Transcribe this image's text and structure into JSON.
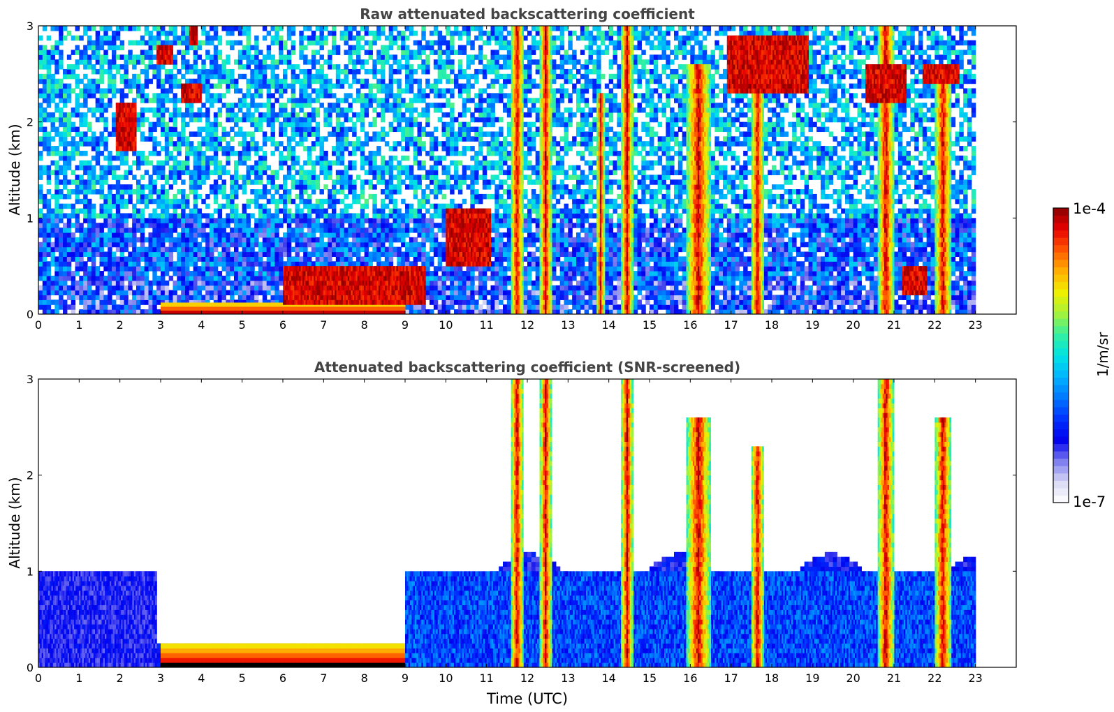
{
  "figure": {
    "xlabel": "Time (UTC)",
    "colorbar": {
      "label": "1/m/sr",
      "max_label": "1e-4",
      "min_label": "1e-7",
      "scale": "log",
      "vmin": 1e-07,
      "vmax": 0.0001,
      "colormap": [
        "#ffffff",
        "#d8d8f4",
        "#7a7af0",
        "#0000ee",
        "#0033ff",
        "#0077ff",
        "#00b4ff",
        "#00e4e4",
        "#33f0a0",
        "#a6f23a",
        "#f0f000",
        "#ffb000",
        "#ff5a00",
        "#e80000",
        "#8b0000"
      ]
    }
  },
  "chart_data": [
    {
      "type": "heatmap",
      "title": "Raw attenuated backscattering coefficient",
      "xlabel": "",
      "ylabel": "Altitude (km)",
      "xlim": [
        0,
        24
      ],
      "ylim": [
        0,
        3
      ],
      "x_ticks": [
        "0",
        "1",
        "2",
        "3",
        "4",
        "5",
        "6",
        "7",
        "8",
        "9",
        "10",
        "11",
        "12",
        "13",
        "14",
        "15",
        "16",
        "17",
        "18",
        "19",
        "20",
        "21",
        "22",
        "23"
      ],
      "y_ticks": [
        "0",
        "1",
        "2",
        "3"
      ],
      "data_extent_x": [
        0,
        23
      ],
      "features": [
        {
          "kind": "surface_aerosol_layer",
          "x": [
            3.0,
            9.0
          ],
          "altitude_km": [
            0.0,
            0.12
          ]
        },
        {
          "kind": "boundary_layer_top",
          "x": [
            6.0,
            9.5
          ],
          "altitude_km": [
            0.1,
            0.5
          ]
        },
        {
          "kind": "cloud",
          "x": [
            2.9,
            3.3
          ],
          "altitude_km": [
            2.6,
            2.8
          ]
        },
        {
          "kind": "cloud",
          "x": [
            1.9,
            2.4
          ],
          "altitude_km": [
            1.7,
            2.2
          ]
        },
        {
          "kind": "cloud",
          "x": [
            3.5,
            4.0
          ],
          "altitude_km": [
            2.2,
            2.4
          ]
        },
        {
          "kind": "cloud",
          "x": [
            3.7,
            3.9
          ],
          "altitude_km": [
            2.8,
            3.0
          ]
        },
        {
          "kind": "cloud",
          "x": [
            10.0,
            11.1
          ],
          "altitude_km": [
            0.5,
            1.1
          ]
        },
        {
          "kind": "precipitation",
          "x": [
            11.6,
            11.9
          ],
          "altitude_km": [
            0.0,
            3.0
          ]
        },
        {
          "kind": "precipitation",
          "x": [
            12.3,
            12.6
          ],
          "altitude_km": [
            0.0,
            3.0
          ]
        },
        {
          "kind": "precipitation",
          "x": [
            13.7,
            13.9
          ],
          "altitude_km": [
            0.0,
            2.3
          ]
        },
        {
          "kind": "precipitation",
          "x": [
            14.3,
            14.6
          ],
          "altitude_km": [
            0.0,
            3.0
          ]
        },
        {
          "kind": "precipitation",
          "x": [
            15.9,
            16.5
          ],
          "altitude_km": [
            0.0,
            2.6
          ]
        },
        {
          "kind": "precipitation",
          "x": [
            17.5,
            17.8
          ],
          "altitude_km": [
            0.0,
            2.3
          ]
        },
        {
          "kind": "cloud",
          "x": [
            16.9,
            18.9
          ],
          "altitude_km": [
            2.3,
            2.9
          ]
        },
        {
          "kind": "precipitation",
          "x": [
            20.6,
            21.0
          ],
          "altitude_km": [
            0.0,
            3.0
          ]
        },
        {
          "kind": "cloud",
          "x": [
            20.3,
            21.3
          ],
          "altitude_km": [
            2.2,
            2.6
          ]
        },
        {
          "kind": "cloud",
          "x": [
            21.2,
            21.8
          ],
          "altitude_km": [
            0.2,
            0.5
          ]
        },
        {
          "kind": "precipitation",
          "x": [
            22.0,
            22.4
          ],
          "altitude_km": [
            0.0,
            2.6
          ]
        },
        {
          "kind": "cloud",
          "x": [
            21.7,
            22.6
          ],
          "altitude_km": [
            2.4,
            2.6
          ]
        }
      ]
    },
    {
      "type": "heatmap",
      "title": "Attenuated backscattering coefficient (SNR-screened)",
      "xlabel": "Time (UTC)",
      "ylabel": "Altitude (km)",
      "xlim": [
        0,
        24
      ],
      "ylim": [
        0,
        3
      ],
      "x_ticks": [
        "0",
        "1",
        "2",
        "3",
        "4",
        "5",
        "6",
        "7",
        "8",
        "9",
        "10",
        "11",
        "12",
        "13",
        "14",
        "15",
        "16",
        "17",
        "18",
        "19",
        "20",
        "21",
        "22",
        "23"
      ],
      "y_ticks": [
        "0",
        "1",
        "2",
        "3"
      ],
      "data_extent_x": [
        0,
        23
      ],
      "screened_out": "values below SNR threshold shown white",
      "features": [
        {
          "kind": "residual_layer",
          "x": [
            0.0,
            2.9
          ],
          "altitude_km": [
            0.0,
            1.0
          ]
        },
        {
          "kind": "surface_aerosol_layer",
          "x": [
            3.0,
            9.0
          ],
          "altitude_km": [
            0.0,
            0.25
          ]
        },
        {
          "kind": "mixed_layer",
          "x": [
            9.0,
            23.0
          ],
          "altitude_km": [
            0.0,
            1.0
          ]
        },
        {
          "kind": "precipitation",
          "x": [
            11.6,
            11.9
          ],
          "altitude_km": [
            0.0,
            3.0
          ]
        },
        {
          "kind": "precipitation",
          "x": [
            12.3,
            12.6
          ],
          "altitude_km": [
            0.0,
            3.0
          ]
        },
        {
          "kind": "precipitation",
          "x": [
            14.3,
            14.6
          ],
          "altitude_km": [
            0.0,
            3.0
          ]
        },
        {
          "kind": "precipitation",
          "x": [
            15.9,
            16.5
          ],
          "altitude_km": [
            0.0,
            2.6
          ]
        },
        {
          "kind": "precipitation",
          "x": [
            17.5,
            17.8
          ],
          "altitude_km": [
            0.0,
            2.3
          ]
        },
        {
          "kind": "precipitation",
          "x": [
            20.6,
            21.0
          ],
          "altitude_km": [
            0.0,
            3.0
          ]
        },
        {
          "kind": "precipitation",
          "x": [
            22.0,
            22.4
          ],
          "altitude_km": [
            0.0,
            2.6
          ]
        }
      ]
    }
  ]
}
